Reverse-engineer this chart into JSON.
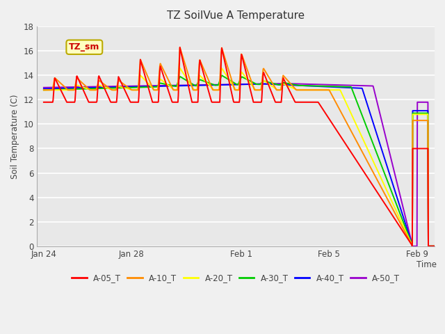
{
  "title": "TZ SoilVue A Temperature",
  "xlabel": "Time",
  "ylabel": "Soil Temperature (C)",
  "ylim": [
    0,
    18
  ],
  "yticks": [
    0,
    2,
    4,
    6,
    8,
    10,
    12,
    14,
    16,
    18
  ],
  "series_colors": {
    "A-05_T": "#ff0000",
    "A-10_T": "#ff8c00",
    "A-20_T": "#ffff00",
    "A-30_T": "#00cc00",
    "A-40_T": "#0000ff",
    "A-50_T": "#9900cc"
  },
  "series_labels": [
    "A-05_T",
    "A-10_T",
    "A-20_T",
    "A-30_T",
    "A-40_T",
    "A-50_T"
  ],
  "annotation_text": "TZ_sm",
  "bg_color": "#f0f0f0",
  "plot_bg_color": "#e8e8e8",
  "grid_color": "#ffffff",
  "x_tick_labels": [
    "Jan 24",
    "Jan 28",
    "Feb 1",
    "Feb 5",
    "Feb 9"
  ],
  "x_tick_positions": [
    0,
    4,
    9,
    13,
    17
  ]
}
